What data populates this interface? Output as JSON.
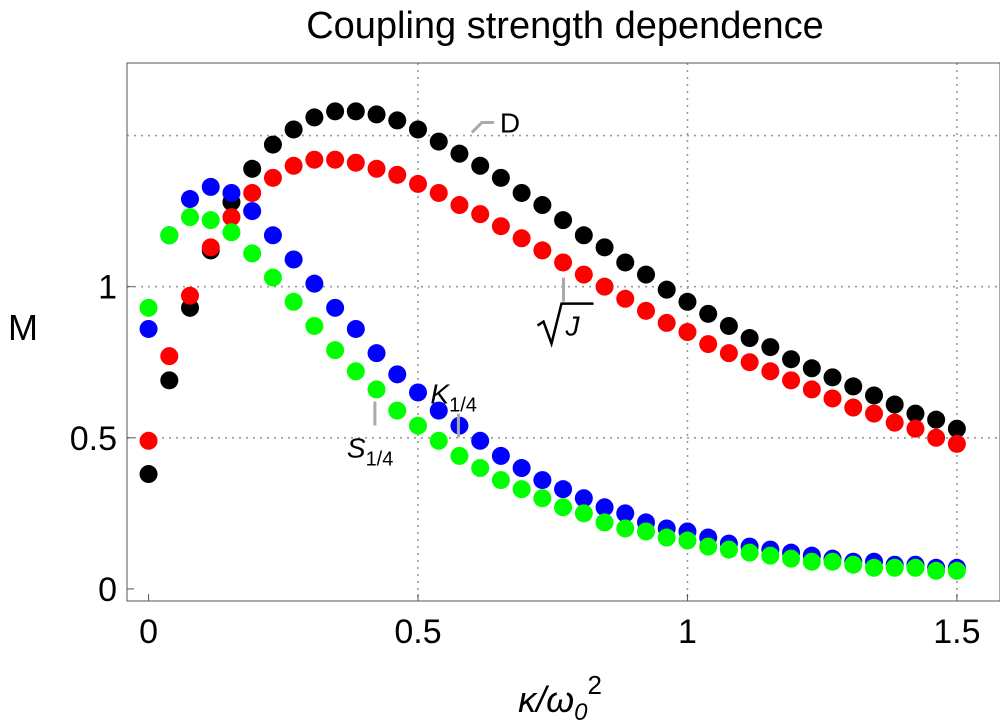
{
  "chart_data": {
    "type": "scatter",
    "title": "Coupling strength dependence",
    "xlabel": {
      "base": "κ/ω",
      "sub": "0",
      "sup": "2"
    },
    "ylabel": "M",
    "xlim": [
      -0.04,
      1.58
    ],
    "ylim": [
      -0.04,
      1.74
    ],
    "grid": true,
    "grid_style": "dotted",
    "xticks": [
      0,
      0.5,
      1,
      1.5
    ],
    "xtick_labels": [
      "0",
      "0.5",
      "1",
      "1.5"
    ],
    "yticks": [
      0,
      0.5,
      1
    ],
    "ytick_labels": [
      "0",
      "0.5",
      "1"
    ],
    "grid_y": [
      0.5,
      1,
      1.5
    ],
    "x": [
      0,
      0.0385,
      0.0769,
      0.1154,
      0.1538,
      0.1923,
      0.2308,
      0.2692,
      0.3077,
      0.3462,
      0.3846,
      0.4231,
      0.4615,
      0.5,
      0.5385,
      0.5769,
      0.6154,
      0.6538,
      0.6923,
      0.7308,
      0.7692,
      0.8077,
      0.8462,
      0.8846,
      0.9231,
      0.9615,
      1.0,
      1.0385,
      1.0769,
      1.1154,
      1.1538,
      1.1923,
      1.2308,
      1.2692,
      1.3077,
      1.3462,
      1.3846,
      1.4231,
      1.4615,
      1.5
    ],
    "series": [
      {
        "color": "#000000",
        "values": [
          0.38,
          0.69,
          0.93,
          1.12,
          1.28,
          1.39,
          1.47,
          1.52,
          1.56,
          1.58,
          1.58,
          1.57,
          1.55,
          1.52,
          1.48,
          1.44,
          1.4,
          1.36,
          1.31,
          1.27,
          1.22,
          1.17,
          1.13,
          1.08,
          1.04,
          0.99,
          0.95,
          0.91,
          0.87,
          0.83,
          0.8,
          0.76,
          0.73,
          0.7,
          0.67,
          0.64,
          0.61,
          0.58,
          0.56,
          0.53
        ]
      },
      {
        "color": "#ff0000",
        "values": [
          0.49,
          0.77,
          0.97,
          1.13,
          1.23,
          1.31,
          1.36,
          1.4,
          1.42,
          1.42,
          1.41,
          1.39,
          1.37,
          1.34,
          1.31,
          1.27,
          1.24,
          1.2,
          1.16,
          1.12,
          1.08,
          1.04,
          1.0,
          0.96,
          0.92,
          0.88,
          0.85,
          0.81,
          0.78,
          0.75,
          0.72,
          0.69,
          0.66,
          0.63,
          0.6,
          0.58,
          0.55,
          0.53,
          0.5,
          0.48
        ]
      },
      {
        "color": "#0000ff",
        "values": [
          0.86,
          1.17,
          1.29,
          1.33,
          1.31,
          1.25,
          1.17,
          1.09,
          1.01,
          0.93,
          0.86,
          0.78,
          0.71,
          0.65,
          0.59,
          0.54,
          0.49,
          0.44,
          0.4,
          0.36,
          0.33,
          0.3,
          0.27,
          0.25,
          0.22,
          0.2,
          0.19,
          0.17,
          0.15,
          0.14,
          0.13,
          0.12,
          0.11,
          0.1,
          0.09,
          0.09,
          0.08,
          0.08,
          0.07,
          0.07
        ]
      },
      {
        "color": "#00ff00",
        "values": [
          0.93,
          1.17,
          1.23,
          1.22,
          1.18,
          1.11,
          1.03,
          0.95,
          0.87,
          0.79,
          0.72,
          0.66,
          0.59,
          0.54,
          0.49,
          0.44,
          0.4,
          0.36,
          0.33,
          0.3,
          0.27,
          0.25,
          0.22,
          0.2,
          0.19,
          0.17,
          0.16,
          0.14,
          0.13,
          0.12,
          0.11,
          0.1,
          0.09,
          0.09,
          0.08,
          0.07,
          0.07,
          0.07,
          0.06,
          0.06
        ]
      }
    ],
    "annotations": [
      {
        "label": "D",
        "at_x": 0.6,
        "at_y": 1.51,
        "style": "plain"
      },
      {
        "label": "J",
        "at_x": 0.77,
        "at_y": 1.03,
        "style": "sqrt"
      },
      {
        "label": "K",
        "sub": "1/4",
        "at_x": 0.575,
        "at_y": 0.58,
        "style": "italic-sub"
      },
      {
        "label": "S",
        "sub": "1/4",
        "at_x": 0.42,
        "at_y": 0.62,
        "style": "italic-sub"
      }
    ]
  }
}
